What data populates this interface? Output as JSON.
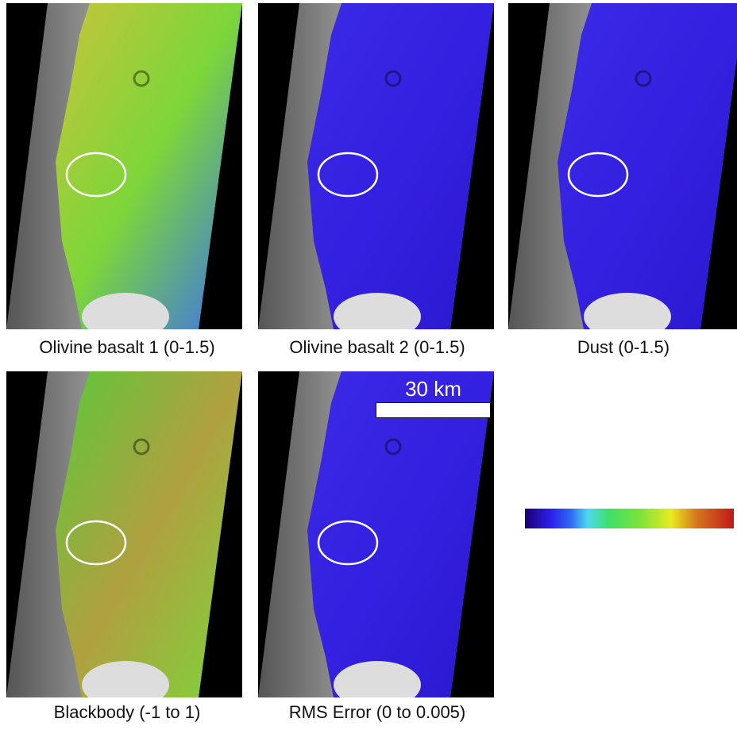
{
  "panels": [
    {
      "caption": "Olivine basalt 1 (0-1.5)"
    },
    {
      "caption": "Olivine basalt 2 (0-1.5)"
    },
    {
      "caption": "Dust (0-1.5)"
    },
    {
      "caption": "Blackbody (-1 to 1)"
    },
    {
      "caption": "RMS Error (0 to 0.005)"
    }
  ],
  "scale_bar": {
    "label": "30 km"
  }
}
